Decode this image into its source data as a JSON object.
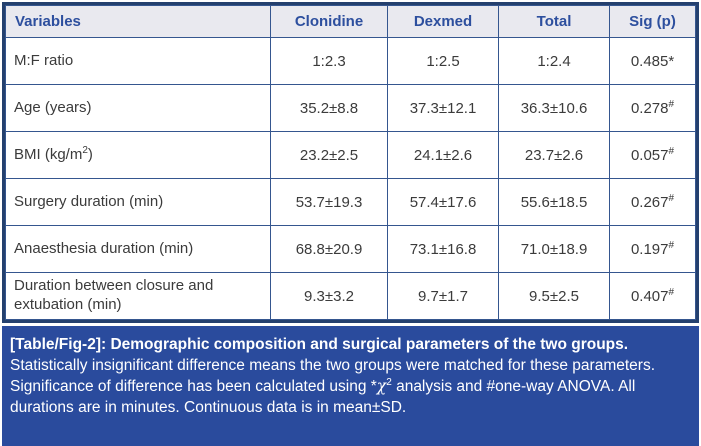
{
  "table": {
    "columns": [
      "Variables",
      "Clonidine",
      "Dexmed",
      "Total",
      "Sig (p)"
    ],
    "rows": [
      {
        "label": "M:F ratio",
        "label_sup": "",
        "label_after": "",
        "clonidine": "1:2.3",
        "dexmed": "1:2.5",
        "total": "1:2.4",
        "sig": "0.485*",
        "sig_sup": ""
      },
      {
        "label": "Age (years)",
        "label_sup": "",
        "label_after": "",
        "clonidine": "35.2±8.8",
        "dexmed": "37.3±12.1",
        "total": "36.3±10.6",
        "sig": "0.278",
        "sig_sup": "#"
      },
      {
        "label": "BMI (kg/m",
        "label_sup": "2",
        "label_after": ")",
        "clonidine": "23.2±2.5",
        "dexmed": "24.1±2.6",
        "total": "23.7±2.6",
        "sig": "0.057",
        "sig_sup": "#"
      },
      {
        "label": "Surgery duration (min)",
        "label_sup": "",
        "label_after": "",
        "clonidine": "53.7±19.3",
        "dexmed": "57.4±17.6",
        "total": "55.6±18.5",
        "sig": "0.267",
        "sig_sup": "#"
      },
      {
        "label": "Anaesthesia duration (min)",
        "label_sup": "",
        "label_after": "",
        "clonidine": "68.8±20.9",
        "dexmed": "73.1±16.8",
        "total": "71.0±18.9",
        "sig": "0.197",
        "sig_sup": "#"
      },
      {
        "label": "Duration between closure and extubation (min)",
        "label_sup": "",
        "label_after": "",
        "clonidine": "9.3±3.2",
        "dexmed": "9.7±1.7",
        "total": "9.5±2.5",
        "sig": "0.407",
        "sig_sup": "#"
      }
    ]
  },
  "caption": {
    "bold": "[Table/Fig-2]:  Demographic composition and surgical parameters of the two groups.",
    "text_1": " Statistically insignificant difference means the two groups were matched for these parameters. Significance of difference has been calculated using *",
    "chi": "χ",
    "chi_sup": "2",
    "text_2": " analysis and #one-way ANOVA. All durations are in minutes. Continuous data is in mean±SD."
  },
  "colors": {
    "caption_bg": "#2a4b9d",
    "header_bg": "#e9e9ef",
    "header_text": "#2d4f9e",
    "border": "#35568f",
    "frame": "#24406e",
    "body_text": "#3b3b3b"
  }
}
